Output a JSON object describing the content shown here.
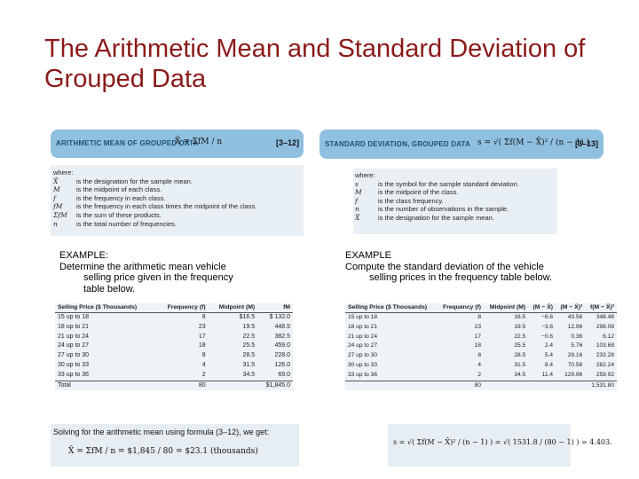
{
  "title": "The Arithmetic Mean and Standard Deviation of Grouped Data",
  "left": {
    "formula_bar": {
      "label": "ARITHMETIC MEAN OF GROUPED DATA",
      "formula": "X̄ = ΣfM / n",
      "eq_number": "[3–12]"
    },
    "where": {
      "header": "where:",
      "items": [
        {
          "sym": "X̄",
          "text": "is the designation for the sample mean."
        },
        {
          "sym": "M",
          "text": "is the midpoint of each class."
        },
        {
          "sym": "f",
          "text": "is the frequency in each class."
        },
        {
          "sym": "fM",
          "text": "is the frequency in each class times the midpoint of the class."
        },
        {
          "sym": "ΣfM",
          "text": "is the sum of these products."
        },
        {
          "sym": "n",
          "text": "is the total number of frequencies."
        }
      ]
    },
    "caption": {
      "line1": "EXAMPLE:",
      "line2": "Determine the arithmetic mean vehicle",
      "line3": "selling price given in the frequency",
      "line4": "table below."
    },
    "table": {
      "headers": [
        "Selling Price ($ Thousands)",
        "Frequency (f)",
        "Midpoint (M)",
        "fM"
      ],
      "rows": [
        [
          "15 up to 18",
          "8",
          "$16.5",
          "$ 132.0"
        ],
        [
          "18 up to 21",
          "23",
          "19.5",
          "448.5"
        ],
        [
          "21 up to 24",
          "17",
          "22.5",
          "382.5"
        ],
        [
          "24 up to 27",
          "18",
          "25.5",
          "459.0"
        ],
        [
          "27 up to 30",
          "8",
          "28.5",
          "228.0"
        ],
        [
          "30 up to 33",
          "4",
          "31.5",
          "126.0"
        ],
        [
          "33 up to 36",
          "2",
          "34.5",
          "69.0"
        ]
      ],
      "total": [
        "Total",
        "80",
        "",
        "$1,845.0"
      ]
    },
    "solve": {
      "text": "Solving for the arithmetic mean using formula (3–12), we get:",
      "formula": "X̄ = ΣfM / n = $1,845 / 80 = $23.1 (thousands)"
    }
  },
  "right": {
    "formula_bar": {
      "label": "STANDARD DEVIATION, GROUPED DATA",
      "formula": "s = √( Σf(M − X̄)² / (n − 1) )",
      "eq_number": "[3–13]"
    },
    "where": {
      "header": "where:",
      "items": [
        {
          "sym": "s",
          "text": "is the symbol for the sample standard deviation."
        },
        {
          "sym": "M",
          "text": "is the midpoint of the class."
        },
        {
          "sym": "f",
          "text": "is the class frequency."
        },
        {
          "sym": "n",
          "text": "is the number of observations in the sample."
        },
        {
          "sym": "X̄",
          "text": "is the designation for the sample mean."
        }
      ]
    },
    "caption": {
      "line1": "EXAMPLE",
      "line2": "Compute the standard deviation of the vehicle",
      "line3": "selling prices in the frequency table below."
    },
    "table": {
      "headers": [
        "Selling Price ($ Thousands)",
        "Frequency (f)",
        "Midpoint (M)",
        "(M − X̄)",
        "(M − X̄)²",
        "f(M − X̄)²"
      ],
      "rows": [
        [
          "15 up to 18",
          "8",
          "16.5",
          "−6.6",
          "43.56",
          "348.48"
        ],
        [
          "18 up to 21",
          "23",
          "19.5",
          "−3.6",
          "12.96",
          "298.08"
        ],
        [
          "21 up to 24",
          "17",
          "22.5",
          "−0.6",
          "0.36",
          "6.12"
        ],
        [
          "24 up to 27",
          "18",
          "25.5",
          "2.4",
          "5.76",
          "103.68"
        ],
        [
          "27 up to 30",
          "8",
          "28.5",
          "5.4",
          "29.16",
          "233.28"
        ],
        [
          "30 up to 33",
          "4",
          "31.5",
          "8.4",
          "70.56",
          "282.24"
        ],
        [
          "33 up to 36",
          "2",
          "34.5",
          "11.4",
          "129.96",
          "259.92"
        ]
      ],
      "total": [
        "",
        "80",
        "",
        "",
        "",
        "1,531.80"
      ]
    },
    "solve": {
      "formula": "s = √( Σf(M − X̄)² / (n − 1) ) = √( 1531.8 / (80 − 1) ) = 4.403."
    }
  }
}
